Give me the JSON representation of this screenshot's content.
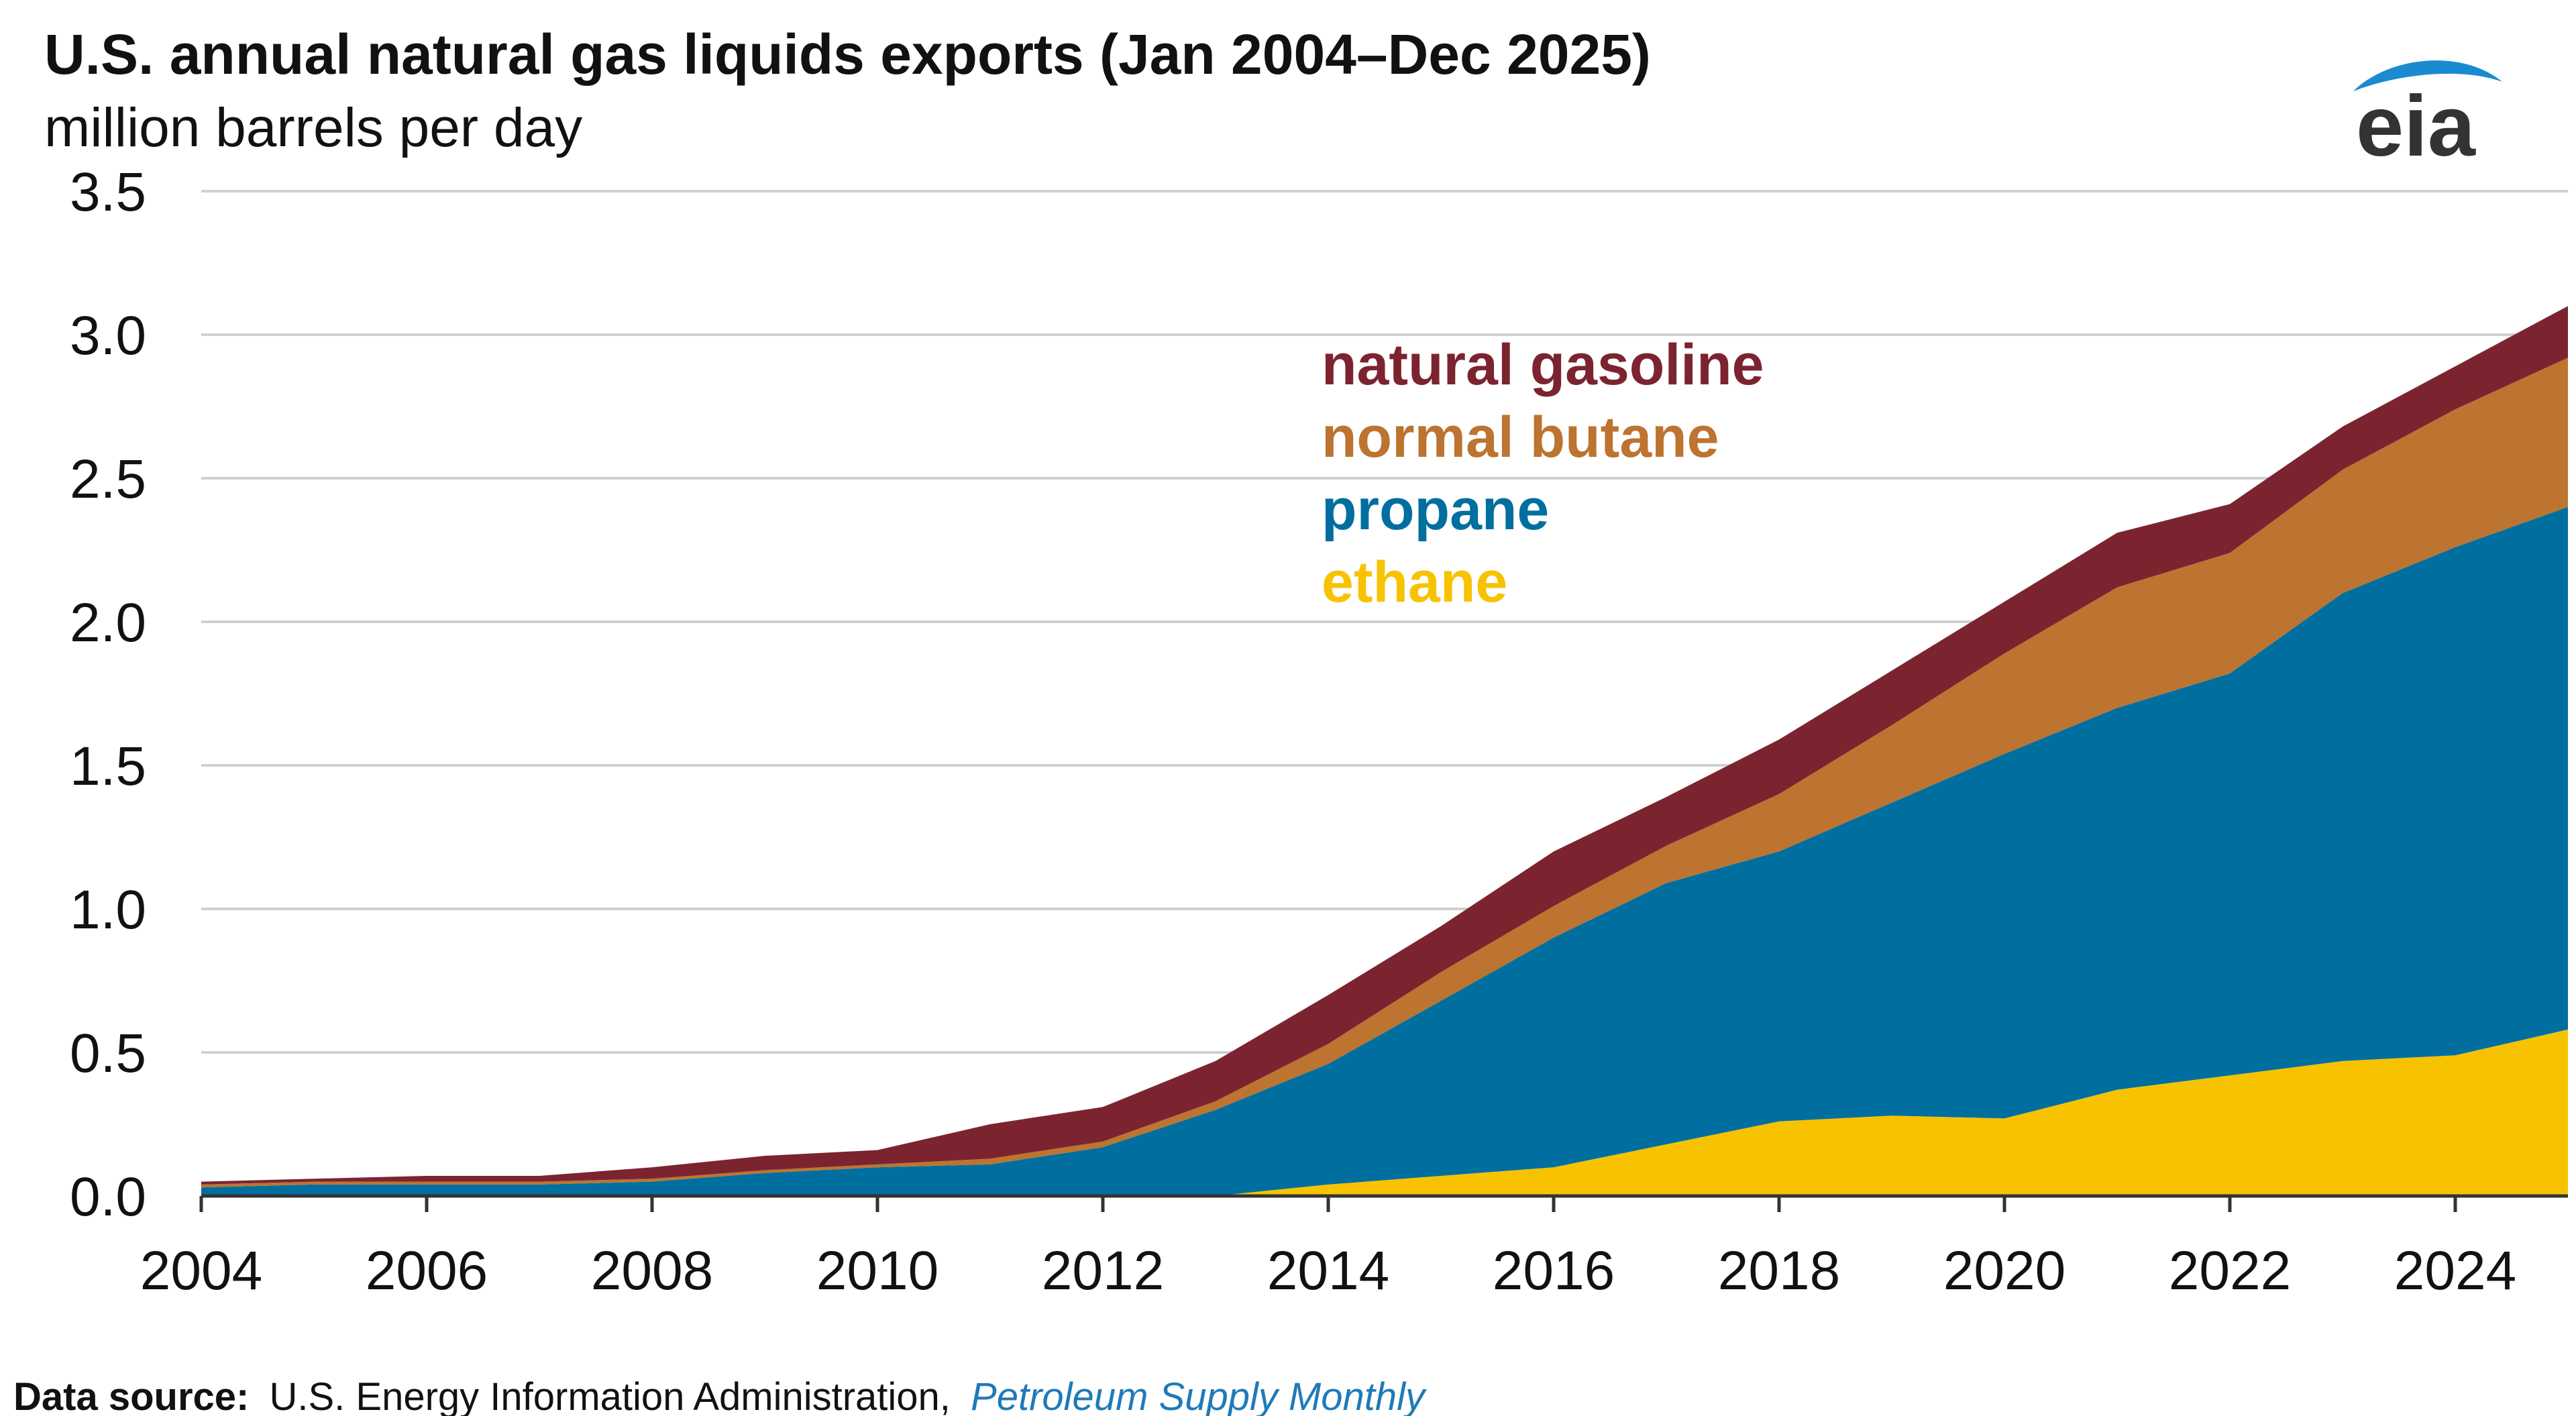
{
  "colors": {
    "natural_gasoline": "#7b2430",
    "normal_butane": "#bc7430",
    "propane": "#006fa0",
    "ethane": "#f7c300",
    "grid": "#d0d0d0",
    "axis": "#333333",
    "source_link": "#1f7ab8",
    "logo_swoosh": "#1a8bd0"
  },
  "logo": {
    "text": "eia",
    "icon": "eia-swoosh-icon"
  },
  "source": {
    "label": "Data source:",
    "text": "U.S. Energy Information Administration,",
    "publication": "Petroleum Supply Monthly"
  },
  "chart_data": {
    "type": "area",
    "stacked": true,
    "title": "U.S. annual natural gas liquids exports (Jan 2004–Dec 2025)",
    "subtitle": "million barrels per day",
    "xlabel": "",
    "ylabel": "",
    "x": [
      2004,
      2005,
      2006,
      2007,
      2008,
      2009,
      2010,
      2011,
      2012,
      2013,
      2014,
      2015,
      2016,
      2017,
      2018,
      2019,
      2020,
      2021,
      2022,
      2023,
      2024,
      2025
    ],
    "xlim": [
      2004,
      2025
    ],
    "ylim": [
      0,
      3.5
    ],
    "x_ticks": [
      2004,
      2006,
      2008,
      2010,
      2012,
      2014,
      2016,
      2018,
      2020,
      2022,
      2024
    ],
    "x_tick_labels": [
      "2004",
      "2006",
      "2008",
      "2010",
      "2012",
      "2014",
      "2016",
      "2018",
      "2020",
      "2022",
      "2024"
    ],
    "y_ticks": [
      0,
      0.5,
      1,
      1.5,
      2,
      2.5,
      3,
      3.5
    ],
    "y_tick_labels": [
      "0.0",
      "0.5",
      "1.0",
      "1.5",
      "2.0",
      "2.5",
      "3.0",
      "3.5"
    ],
    "grid": true,
    "legend_position": "top-center",
    "series": [
      {
        "name": "ethane",
        "color": "#f7c300",
        "values": [
          0,
          0,
          0,
          0,
          0,
          0,
          0,
          0,
          0,
          0,
          0.04,
          0.07,
          0.1,
          0.18,
          0.26,
          0.28,
          0.27,
          0.37,
          0.42,
          0.47,
          0.49,
          0.58
        ]
      },
      {
        "name": "propane",
        "color": "#006fa0",
        "values": [
          0.03,
          0.04,
          0.04,
          0.04,
          0.05,
          0.08,
          0.1,
          0.11,
          0.17,
          0.3,
          0.42,
          0.61,
          0.8,
          0.91,
          0.94,
          1.09,
          1.27,
          1.33,
          1.4,
          1.63,
          1.77,
          1.82
        ]
      },
      {
        "name": "normal butane",
        "color": "#bc7430",
        "values": [
          0.01,
          0.01,
          0.01,
          0.01,
          0.01,
          0.01,
          0.01,
          0.02,
          0.02,
          0.03,
          0.07,
          0.1,
          0.11,
          0.13,
          0.2,
          0.27,
          0.35,
          0.42,
          0.42,
          0.43,
          0.48,
          0.52
        ]
      },
      {
        "name": "natural gasoline",
        "color": "#7b2430",
        "values": [
          0.01,
          0.01,
          0.02,
          0.02,
          0.04,
          0.05,
          0.05,
          0.12,
          0.12,
          0.14,
          0.17,
          0.16,
          0.19,
          0.17,
          0.19,
          0.19,
          0.18,
          0.19,
          0.17,
          0.15,
          0.15,
          0.18
        ]
      }
    ],
    "legend_order": [
      "natural gasoline",
      "normal butane",
      "propane",
      "ethane"
    ]
  }
}
